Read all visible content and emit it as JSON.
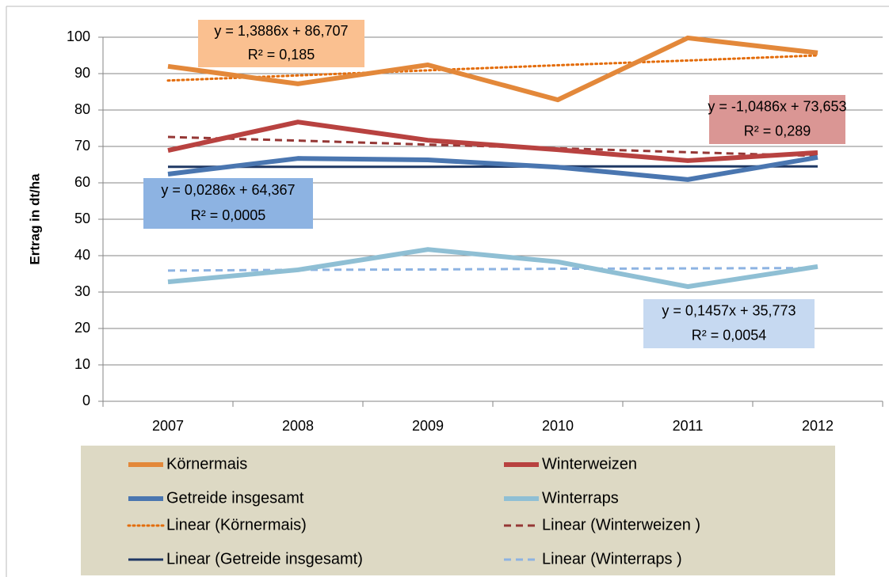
{
  "chart_data": {
    "type": "line",
    "y_label": "Ertrag in dt/ha",
    "categories": [
      "2007",
      "2008",
      "2009",
      "2010",
      "2011",
      "2012"
    ],
    "ylim": [
      0,
      100
    ],
    "yticks": [
      0,
      10,
      20,
      30,
      40,
      50,
      60,
      70,
      80,
      90,
      100
    ],
    "grid": true,
    "series": [
      {
        "name": "Körnermais",
        "color": "#e3883a",
        "style": "solid",
        "width": 6,
        "values": [
          92.0,
          87.2,
          92.4,
          82.8,
          99.8,
          95.7
        ]
      },
      {
        "name": "Winterweizen",
        "color": "#b84240",
        "style": "solid",
        "width": 6,
        "values": [
          68.9,
          76.7,
          71.7,
          69.1,
          66.1,
          68.3
        ]
      },
      {
        "name": "Getreide insgesamt",
        "color": "#4a76b0",
        "style": "solid",
        "width": 6,
        "values": [
          62.4,
          66.7,
          66.3,
          64.3,
          60.9,
          67.0
        ]
      },
      {
        "name": "Winterraps",
        "color": "#8fbfd4",
        "style": "solid",
        "width": 6,
        "values": [
          32.8,
          36.1,
          41.7,
          38.3,
          31.5,
          37.0
        ]
      },
      {
        "name": "Linear (Körnermais)",
        "color": "#e36c0a",
        "style": "dotted",
        "width": 3,
        "values": [
          88.1,
          89.5,
          90.9,
          92.3,
          93.6,
          95.0
        ]
      },
      {
        "name": "Linear (Winterweizen )",
        "color": "#953735",
        "style": "dashed",
        "width": 3,
        "values": [
          72.6,
          71.6,
          70.5,
          69.5,
          68.4,
          67.4
        ]
      },
      {
        "name": "Linear (Getreide insgesamt)",
        "color": "#1f3864",
        "style": "solid",
        "width": 3,
        "values": [
          64.4,
          64.4,
          64.4,
          64.5,
          64.5,
          64.5
        ]
      },
      {
        "name": "Linear (Winterraps )",
        "color": "#8db3e2",
        "style": "dashed",
        "width": 3,
        "values": [
          35.9,
          36.1,
          36.2,
          36.4,
          36.5,
          36.6
        ]
      }
    ],
    "annotations": [
      {
        "lines": [
          "y = 1,3886x + 86,707",
          "R² = 0,185"
        ],
        "color": "#fac090"
      },
      {
        "lines": [
          "y = -1,0486x + 73,653",
          "R² = 0,289"
        ],
        "color": "#da9694"
      },
      {
        "lines": [
          "y = 0,0286x + 64,367",
          "R² = 0,0005"
        ],
        "color": "#8db3e2"
      },
      {
        "lines": [
          "y = 0,1457x + 35,773",
          "R² = 0,0054"
        ],
        "color": "#c6d9f1"
      }
    ]
  }
}
